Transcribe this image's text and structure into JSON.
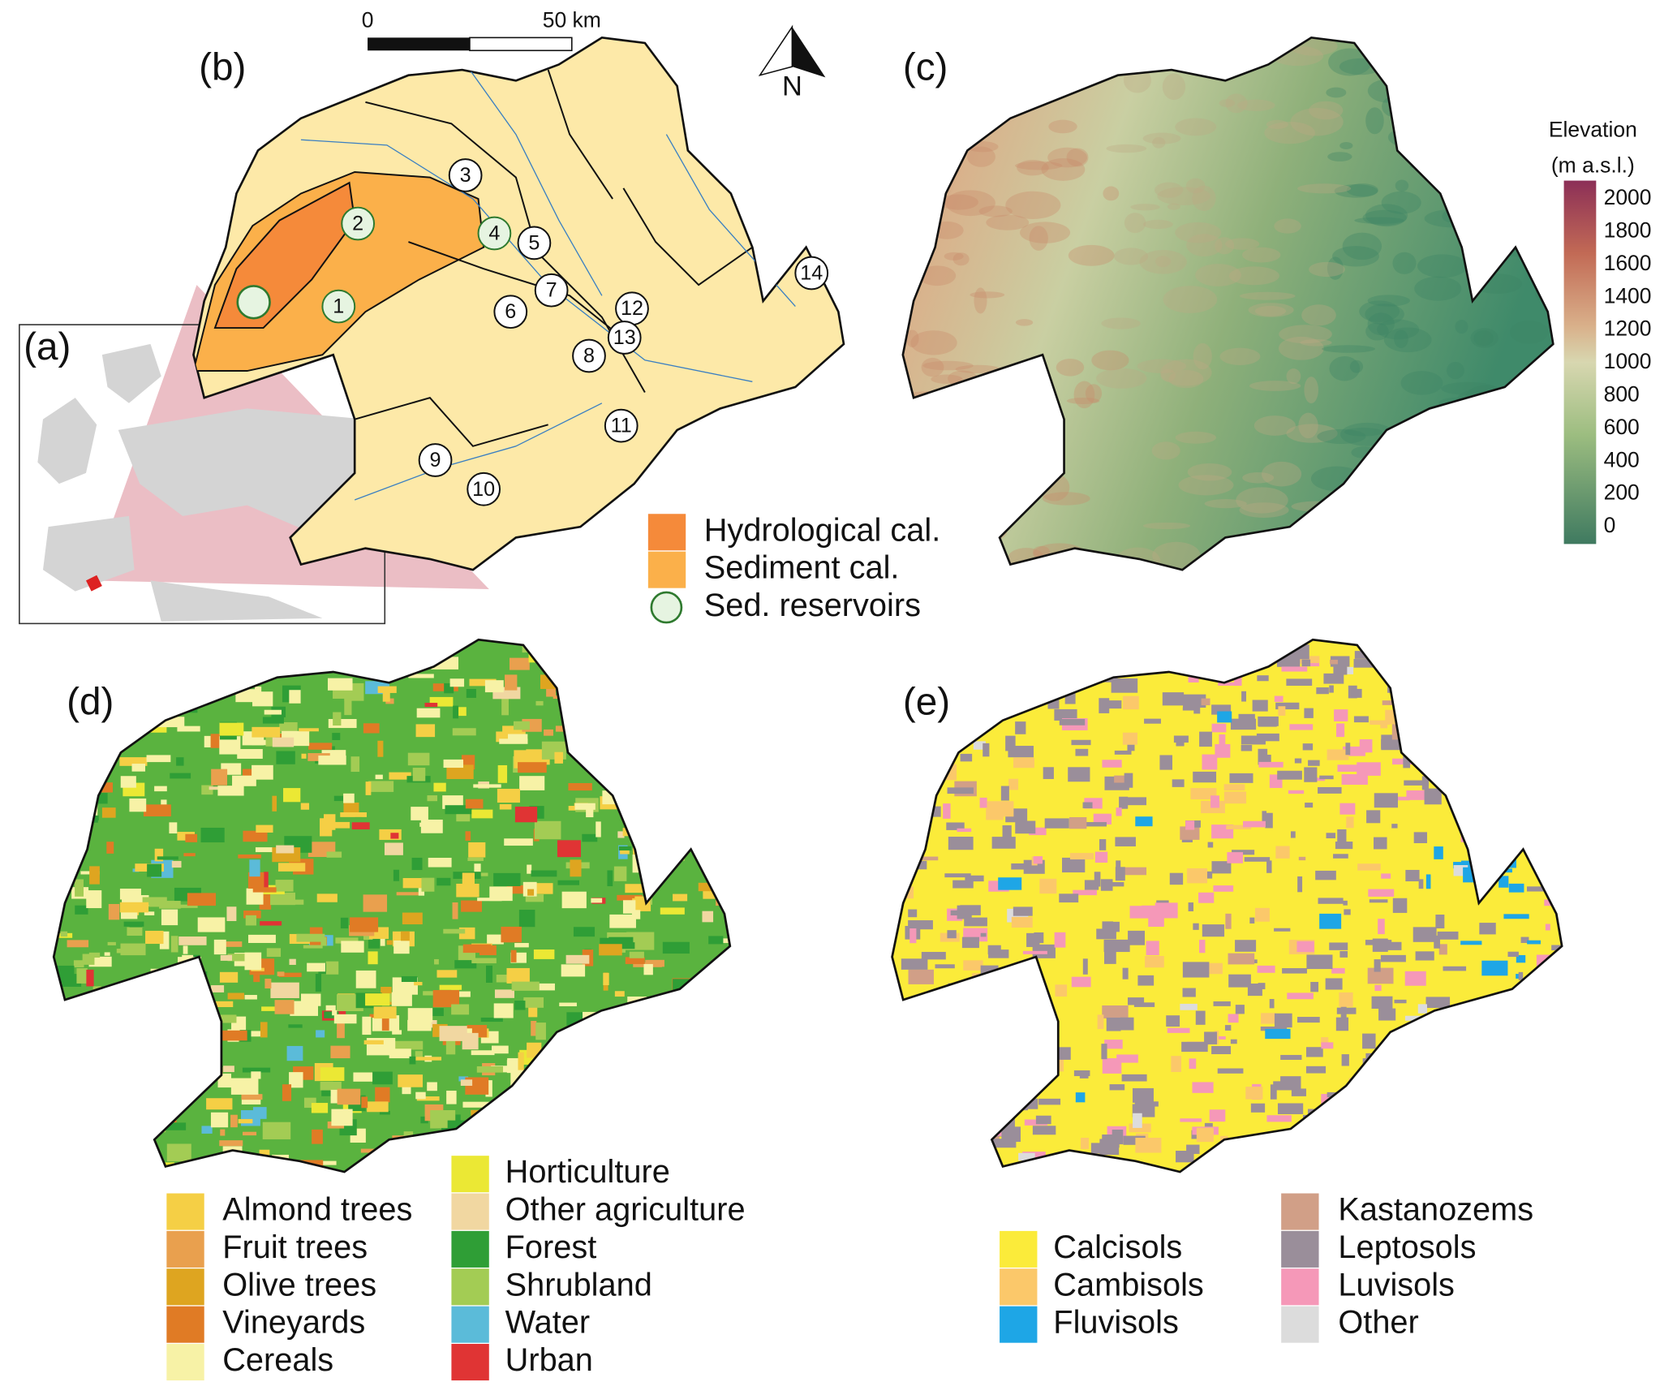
{
  "panels": {
    "a": "(a)",
    "b": "(b)",
    "c": "(c)",
    "d": "(d)",
    "e": "(e)"
  },
  "scale_bar": {
    "start": "0",
    "end": "50 km"
  },
  "north": "N",
  "panel_b": {
    "legend": [
      {
        "name": "Hydrological cal.",
        "color": "#f58a3a"
      },
      {
        "name": "Sediment cal.",
        "color": "#fbb04a"
      },
      {
        "name": "Sed. reservoirs",
        "color": "#e6f4e1"
      }
    ],
    "stations": [
      "1",
      "2",
      "3",
      "4",
      "5",
      "6",
      "7",
      "8",
      "9",
      "10",
      "11",
      "12",
      "13",
      "14"
    ]
  },
  "elevation": {
    "title": [
      "Elevation",
      "(m a.s.l.)"
    ],
    "ticks": [
      2000,
      1800,
      1600,
      1400,
      1200,
      1000,
      800,
      600,
      400,
      200,
      0
    ]
  },
  "land_use": {
    "legend": [
      {
        "name": "Almond trees",
        "color": "#f5cf45"
      },
      {
        "name": "Fruit trees",
        "color": "#e9a04e"
      },
      {
        "name": "Olive trees",
        "color": "#dea520"
      },
      {
        "name": "Vineyards",
        "color": "#e07b25"
      },
      {
        "name": "Cereals",
        "color": "#f7f2a6"
      },
      {
        "name": "Horticulture",
        "color": "#ebe834"
      },
      {
        "name": "Other agriculture",
        "color": "#f1d7a1"
      },
      {
        "name": "Forest",
        "color": "#2f9e36"
      },
      {
        "name": "Shrubland",
        "color": "#a3cc54"
      },
      {
        "name": "Water",
        "color": "#5bbbd9"
      },
      {
        "name": "Urban",
        "color": "#e03434"
      }
    ]
  },
  "soils": {
    "legend": [
      {
        "name": "Calcisols",
        "color": "#fbeb3a"
      },
      {
        "name": "Cambisols",
        "color": "#fbc86a"
      },
      {
        "name": "Fluvisols",
        "color": "#1ea6e6"
      },
      {
        "name": "Kastanozems",
        "color": "#d19f87"
      },
      {
        "name": "Leptosols",
        "color": "#9a8e9a"
      },
      {
        "name": "Luvisols",
        "color": "#f598b8"
      },
      {
        "name": "Other",
        "color": "#dcdcdc"
      }
    ]
  }
}
